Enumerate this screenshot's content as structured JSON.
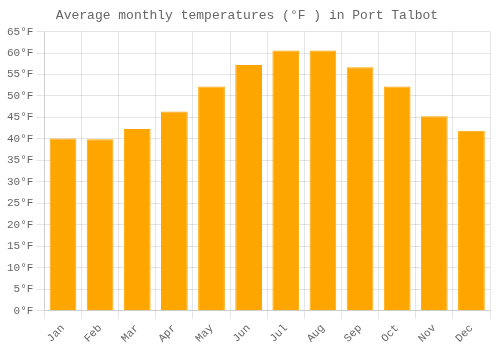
{
  "chart_data": {
    "type": "bar",
    "title": "Average monthly temperatures (°F ) in Port Talbot",
    "categories": [
      "Jan",
      "Feb",
      "Mar",
      "Apr",
      "May",
      "Jun",
      "Jul",
      "Aug",
      "Sep",
      "Oct",
      "Nov",
      "Dec"
    ],
    "values": [
      40.1,
      39.9,
      42.3,
      46.4,
      52.2,
      57.2,
      60.6,
      60.6,
      56.7,
      52.2,
      45.3,
      41.9
    ],
    "color": "#FFA500",
    "ylim": [
      0,
      65
    ],
    "yticks": [
      {
        "value": 0,
        "label": "0°F"
      },
      {
        "value": 5,
        "label": "5°F"
      },
      {
        "value": 10,
        "label": "10°F"
      },
      {
        "value": 15,
        "label": "15°F"
      },
      {
        "value": 20,
        "label": "20°F"
      },
      {
        "value": 25,
        "label": "25°F"
      },
      {
        "value": 30,
        "label": "30°F"
      },
      {
        "value": 35,
        "label": "35°F"
      },
      {
        "value": 40,
        "label": "40°F"
      },
      {
        "value": 45,
        "label": "45°F"
      },
      {
        "value": 50,
        "label": "50°F"
      },
      {
        "value": 55,
        "label": "55°F"
      },
      {
        "value": 60,
        "label": "60°F"
      },
      {
        "value": 65,
        "label": "65°F"
      }
    ],
    "grid": true
  }
}
